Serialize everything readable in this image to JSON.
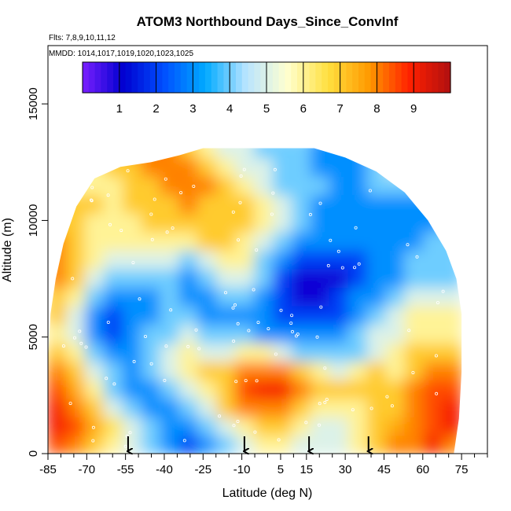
{
  "chart_data": {
    "type": "heatmap",
    "title": "ATOM3 Northbound Days_Since_ConvInf",
    "subtitle_flights": "Flts: 7,8,9,10,11,12",
    "subtitle_dates": "MMDD: 1014,1017,1019,1020,1023,1025",
    "xlabel": "Latitude (deg N)",
    "ylabel": "Altitude (m)",
    "xlim": [
      -85,
      85
    ],
    "ylim": [
      0,
      17500
    ],
    "x_ticks": [
      -85,
      -70,
      -55,
      -40,
      -25,
      -10,
      5,
      15,
      30,
      45,
      60,
      75
    ],
    "x_tick_labels": [
      "-85",
      "-70",
      "-55",
      "-40",
      "-25",
      "-10",
      "5",
      "15",
      "30",
      "45",
      "60",
      "75"
    ],
    "y_ticks": [
      0,
      5000,
      10000,
      15000
    ],
    "y_tick_labels": [
      "0",
      "5000",
      "10000",
      "15000"
    ],
    "colorbar": {
      "range": [
        0,
        10
      ],
      "ticks": [
        1,
        2,
        3,
        4,
        5,
        6,
        7,
        8,
        9
      ],
      "tick_labels": [
        "1",
        "2",
        "3",
        "4",
        "5",
        "6",
        "7",
        "8",
        "9"
      ],
      "colors": [
        "#7a1fff",
        "#0000d0",
        "#0050ff",
        "#00aaff",
        "#b8e4ff",
        "#ffffd0",
        "#ffe040",
        "#ff9a00",
        "#ff2000",
        "#b01010"
      ]
    },
    "flight_arrows_lat": [
      -54,
      -9,
      16,
      39
    ],
    "grid": false,
    "values_days": [
      [
        8.5,
        8,
        7,
        6,
        5,
        4,
        3,
        2,
        3,
        4,
        5,
        6,
        6,
        5,
        5,
        5,
        6,
        7,
        8,
        8,
        9,
        8
      ],
      [
        9,
        8.5,
        7.5,
        6.5,
        5,
        4,
        3,
        3,
        4,
        5,
        6,
        7,
        7,
        6,
        5,
        5,
        6,
        7,
        7.5,
        8,
        8.5,
        9
      ],
      [
        9,
        8,
        7,
        5,
        4,
        3,
        3,
        4,
        5,
        7,
        8,
        8,
        8,
        7,
        6,
        6,
        6,
        7,
        7,
        8,
        8.5,
        9
      ],
      [
        8.5,
        7.5,
        6,
        4,
        3,
        3,
        4,
        5,
        6,
        7,
        8.5,
        9,
        9,
        8,
        7,
        7,
        7,
        7,
        7,
        8,
        8.5,
        8.5
      ],
      [
        8,
        7,
        5,
        4,
        3,
        4,
        5,
        6,
        7,
        7,
        8,
        8,
        8,
        7,
        6,
        5,
        6,
        7,
        6,
        7,
        8,
        8
      ],
      [
        7,
        6,
        4,
        3,
        3,
        4,
        5,
        6,
        5,
        5,
        6,
        6,
        5,
        4,
        4,
        4,
        4,
        5,
        6,
        7,
        7,
        7
      ],
      [
        6,
        5,
        3,
        2,
        3,
        4,
        4,
        5,
        4,
        4,
        4,
        3,
        3,
        3,
        3,
        3,
        4,
        5,
        5,
        6,
        6,
        6
      ],
      [
        7,
        5,
        3,
        2,
        3,
        3,
        4,
        4,
        3,
        3,
        3,
        3,
        2,
        2,
        2,
        2,
        3,
        4,
        5,
        6,
        6,
        6
      ],
      [
        7,
        6,
        4,
        3,
        3,
        3,
        4,
        3,
        3,
        4,
        4,
        3,
        2,
        1,
        1,
        2,
        3,
        3,
        4,
        5,
        5,
        5
      ],
      [
        8,
        7,
        5,
        4,
        4,
        4,
        4,
        3,
        4,
        5,
        5,
        4,
        2,
        1,
        1,
        1,
        2,
        3,
        3,
        4,
        4,
        4
      ],
      [
        8,
        7,
        6,
        5,
        5,
        5,
        5,
        4,
        5,
        6,
        6,
        4,
        3,
        2,
        2,
        2,
        2,
        3,
        3,
        4,
        4,
        4
      ],
      [
        8,
        7,
        6,
        6,
        6,
        6,
        6,
        6,
        7,
        7,
        6,
        5,
        4,
        3,
        3,
        3,
        3,
        3,
        3,
        3,
        4,
        4
      ],
      [
        7,
        7,
        6,
        6,
        6,
        7,
        7,
        7,
        7,
        7,
        7,
        6,
        5,
        4,
        3,
        3,
        3,
        3,
        3,
        3,
        3,
        4
      ],
      [
        7,
        7,
        7,
        6,
        7,
        7,
        7,
        8,
        7,
        7,
        7,
        6,
        5,
        4,
        3,
        3,
        3,
        3,
        3,
        3,
        3,
        3
      ],
      [
        7,
        6,
        6,
        6,
        7,
        7,
        8,
        8,
        8,
        7,
        6,
        5,
        4,
        4,
        4,
        3,
        3,
        4,
        4,
        4,
        4,
        4
      ],
      [
        6,
        6,
        6,
        7,
        7,
        8,
        8,
        8,
        7,
        6,
        5,
        5,
        4,
        4,
        3,
        3,
        3,
        4,
        5,
        5,
        5,
        5
      ],
      [
        6,
        6,
        6,
        7,
        8,
        8,
        8,
        7,
        6,
        5,
        5,
        4,
        4,
        4,
        3,
        3,
        3,
        4,
        4,
        5,
        5,
        5
      ]
    ]
  }
}
